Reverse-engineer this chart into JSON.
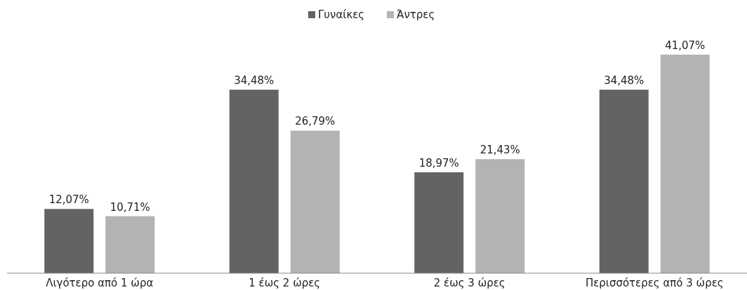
{
  "chart_data": {
    "type": "bar",
    "categories": [
      "Λιγότερο από 1 ώρα",
      "1 έως 2 ώρες",
      "2 έως 3 ώρες",
      "Περισσότερες από 3 ώρες"
    ],
    "legend": "top",
    "series": [
      {
        "name": "Γυναίκες",
        "color": "#636363",
        "values": [
          12.07,
          34.48,
          18.97,
          34.48
        ],
        "value_labels": [
          "12,07%",
          "34,48%",
          "18,97%",
          "34,48%"
        ]
      },
      {
        "name": "Άντρες",
        "color": "#b3b3b3",
        "values": [
          10.71,
          26.79,
          21.43,
          41.07
        ],
        "value_labels": [
          "10,71%",
          "26,79%",
          "21,43%",
          "41,07%"
        ]
      }
    ]
  }
}
